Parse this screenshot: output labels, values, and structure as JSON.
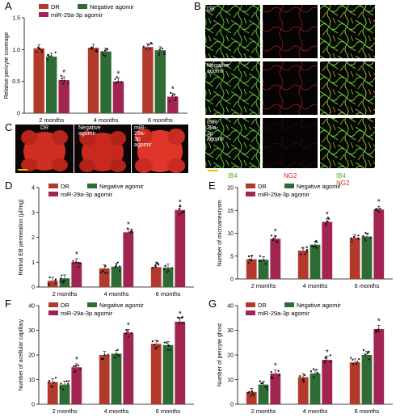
{
  "panel_letters": [
    "A",
    "B",
    "C",
    "D",
    "E",
    "F",
    "G"
  ],
  "legend": {
    "dr": "DR",
    "negative": "Negative agomir",
    "mir": "miR-29a-3p agomir"
  },
  "categories": [
    "2 months",
    "4 months",
    "6 months"
  ],
  "colors": {
    "dr": "#b23a2c",
    "negative": "#2e6b35",
    "mir": "#a12452"
  },
  "panel_b": {
    "row_labels": [
      "DR",
      "Negative agomir",
      "miR-29a-3p agomir"
    ],
    "column_labels": [
      "IB4",
      "NG2",
      "IB4 NG2"
    ],
    "stain_colors": {
      "ib4": "#7bd441",
      "ng2": "#e0241b"
    }
  },
  "panel_c": {
    "labels": [
      "DR",
      "Negative agomir",
      "miR-29a-3p agomir"
    ]
  },
  "significance_marker": "*",
  "chart_data": [
    {
      "id": "A",
      "type": "bar",
      "ylabel": "Relative pericyte coverage",
      "ylim": [
        0,
        1.5
      ],
      "yticks": [
        0,
        0.5,
        1.0,
        1.5
      ],
      "categories": [
        "2 months",
        "4 months",
        "6 months"
      ],
      "series": [
        {
          "name": "DR",
          "values": [
            1.02,
            1.03,
            1.04
          ]
        },
        {
          "name": "Negative agomir",
          "values": [
            0.89,
            0.97,
            0.99
          ]
        },
        {
          "name": "miR-29a-3p agomir",
          "values": [
            0.52,
            0.5,
            0.26
          ]
        }
      ],
      "significant": [
        [
          2,
          0
        ],
        [
          2,
          1
        ],
        [
          2,
          2
        ]
      ]
    },
    {
      "id": "D",
      "type": "bar",
      "ylabel": "Retinal EB permeation (μl/mg)",
      "ylim": [
        0,
        4
      ],
      "yticks": [
        0,
        1,
        2,
        3,
        4
      ],
      "categories": [
        "2 months",
        "4 months",
        "6 months"
      ],
      "series": [
        {
          "name": "DR",
          "values": [
            0.25,
            0.75,
            0.8
          ]
        },
        {
          "name": "Negative agomir",
          "values": [
            0.35,
            0.82,
            0.78
          ]
        },
        {
          "name": "miR-29a-3p agomir",
          "values": [
            1.0,
            2.2,
            3.1
          ]
        }
      ],
      "significant": [
        [
          2,
          0
        ],
        [
          2,
          1
        ],
        [
          2,
          2
        ]
      ]
    },
    {
      "id": "E",
      "type": "bar",
      "ylabel": "Number of microaneurysm",
      "ylim": [
        0,
        20
      ],
      "yticks": [
        0,
        5,
        10,
        15,
        20
      ],
      "categories": [
        "2 months",
        "4 months",
        "6 months"
      ],
      "series": [
        {
          "name": "DR",
          "values": [
            4.3,
            6.2,
            9.0
          ]
        },
        {
          "name": "Negative agomir",
          "values": [
            4.2,
            7.5,
            9.3
          ]
        },
        {
          "name": "miR-29a-3p agomir",
          "values": [
            8.8,
            12.5,
            15.2
          ]
        }
      ],
      "significant": [
        [
          2,
          0
        ],
        [
          2,
          1
        ],
        [
          2,
          2
        ]
      ]
    },
    {
      "id": "F",
      "type": "bar",
      "ylabel": "Number of acellular capillary",
      "ylim": [
        0,
        40
      ],
      "yticks": [
        0,
        10,
        20,
        30,
        40
      ],
      "categories": [
        "2 months",
        "4 months",
        "6 months"
      ],
      "series": [
        {
          "name": "DR",
          "values": [
            9,
            20,
            24.5
          ]
        },
        {
          "name": "Negative agomir",
          "values": [
            8,
            20.5,
            24
          ]
        },
        {
          "name": "miR-29a-3p agomir",
          "values": [
            15,
            29,
            33.5
          ]
        }
      ],
      "significant": [
        [
          2,
          0
        ],
        [
          2,
          1
        ],
        [
          2,
          2
        ]
      ]
    },
    {
      "id": "G",
      "type": "bar",
      "ylabel": "Number of pericyte ghost",
      "ylim": [
        0,
        40
      ],
      "yticks": [
        0,
        10,
        20,
        30,
        40
      ],
      "categories": [
        "2 months",
        "4 months",
        "6 months"
      ],
      "series": [
        {
          "name": "DR",
          "values": [
            5,
            11,
            17
          ]
        },
        {
          "name": "Negative agomir",
          "values": [
            8,
            12.5,
            20
          ]
        },
        {
          "name": "miR-29a-3p agomir",
          "values": [
            12.5,
            18,
            30.5
          ]
        }
      ],
      "significant": [
        [
          2,
          0
        ],
        [
          2,
          1
        ],
        [
          2,
          2
        ]
      ]
    }
  ]
}
